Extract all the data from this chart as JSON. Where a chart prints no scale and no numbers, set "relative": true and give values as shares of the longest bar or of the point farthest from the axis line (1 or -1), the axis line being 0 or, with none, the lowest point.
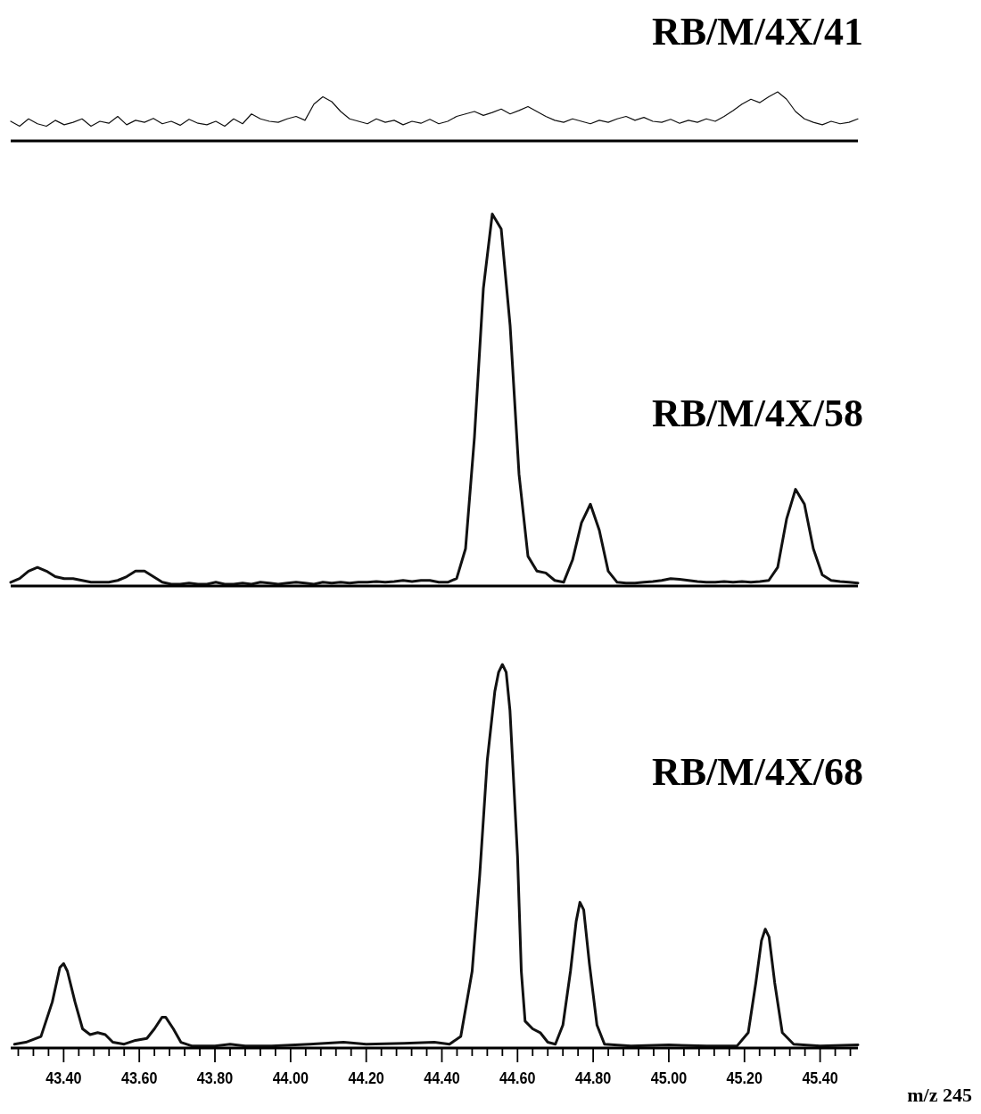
{
  "chart_data": [
    {
      "type": "line",
      "title": "RB/M/4X/41",
      "relative": true,
      "categories": [
        null,
        null,
        null,
        null,
        null,
        null,
        null,
        null,
        null,
        null,
        null,
        null,
        null,
        null,
        null,
        null,
        null,
        null,
        null,
        null,
        null,
        null,
        null,
        null,
        null,
        null,
        null,
        null,
        null,
        null,
        null,
        null,
        null,
        null,
        null,
        null,
        null,
        null,
        null,
        null,
        null,
        null,
        null,
        null,
        null,
        null,
        null,
        null,
        null,
        null,
        null,
        null,
        null,
        null,
        null,
        null,
        null,
        null,
        null,
        null,
        null,
        null,
        null,
        null,
        null,
        null,
        null,
        null,
        null,
        null,
        null,
        null,
        null,
        null,
        null,
        null,
        null,
        null,
        null,
        null,
        null,
        null,
        null,
        null,
        null,
        null,
        null,
        null,
        null,
        null,
        null,
        null,
        null,
        null,
        null,
        null
      ],
      "series": [
        {
          "color": "#111111",
          "values": [
            0.4,
            0.3,
            0.45,
            0.35,
            0.3,
            0.42,
            0.33,
            0.38,
            0.45,
            0.3,
            0.4,
            0.36,
            0.5,
            0.33,
            0.42,
            0.38,
            0.46,
            0.35,
            0.4,
            0.32,
            0.44,
            0.36,
            0.33,
            0.4,
            0.3,
            0.45,
            0.35,
            0.55,
            0.45,
            0.4,
            0.38,
            0.45,
            0.5,
            0.42,
            0.75,
            0.9,
            0.8,
            0.6,
            0.45,
            0.4,
            0.35,
            0.45,
            0.38,
            0.42,
            0.33,
            0.4,
            0.36,
            0.44,
            0.35,
            0.4,
            0.5,
            0.55,
            0.6,
            0.52,
            0.58,
            0.65,
            0.55,
            0.62,
            0.7,
            0.6,
            0.5,
            0.42,
            0.38,
            0.45,
            0.4,
            0.35,
            0.42,
            0.38,
            0.45,
            0.5,
            0.42,
            0.48,
            0.4,
            0.38,
            0.44,
            0.36,
            0.42,
            0.38,
            0.45,
            0.4,
            0.5,
            0.62,
            0.75,
            0.85,
            0.78,
            0.9,
            1.0,
            0.85,
            0.6,
            0.45,
            0.38,
            0.33,
            0.4,
            0.35,
            0.38,
            0.45
          ]
        }
      ]
    },
    {
      "type": "line",
      "title": "RB/M/4X/58",
      "relative": true,
      "categories": [
        null,
        null,
        null,
        null,
        null,
        null,
        null,
        null,
        null,
        null,
        null,
        null,
        null,
        null,
        null,
        null,
        null,
        null,
        null,
        null,
        null,
        null,
        null,
        null,
        null,
        null,
        null,
        null,
        null,
        null,
        null,
        null,
        null,
        null,
        null,
        null,
        null,
        null,
        null,
        null,
        null,
        null,
        null,
        null,
        null,
        null,
        null,
        null,
        null,
        null,
        null,
        null,
        null,
        null,
        null,
        null,
        null,
        null,
        null,
        null,
        null,
        null,
        null,
        null,
        null,
        null,
        null,
        null,
        null,
        null,
        null,
        null,
        null,
        null,
        null,
        null,
        null,
        null,
        null,
        null,
        null,
        null,
        null,
        null,
        null,
        null,
        null,
        null,
        null,
        null,
        null,
        null,
        null,
        null,
        null,
        null
      ],
      "series": [
        {
          "color": "#111111",
          "values": [
            0.01,
            0.02,
            0.04,
            0.05,
            0.04,
            0.025,
            0.02,
            0.02,
            0.015,
            0.01,
            0.01,
            0.01,
            0.015,
            0.025,
            0.04,
            0.04,
            0.025,
            0.01,
            0.005,
            0.005,
            0.008,
            0.005,
            0.005,
            0.01,
            0.005,
            0.005,
            0.008,
            0.005,
            0.01,
            0.008,
            0.005,
            0.008,
            0.01,
            0.008,
            0.005,
            0.01,
            0.008,
            0.01,
            0.008,
            0.01,
            0.01,
            0.012,
            0.01,
            0.012,
            0.015,
            0.012,
            0.015,
            0.015,
            0.01,
            0.01,
            0.02,
            0.1,
            0.4,
            0.8,
            1.0,
            0.96,
            0.7,
            0.3,
            0.08,
            0.04,
            0.035,
            0.015,
            0.01,
            0.07,
            0.17,
            0.22,
            0.15,
            0.04,
            0.01,
            0.008,
            0.008,
            0.01,
            0.012,
            0.015,
            0.02,
            0.018,
            0.015,
            0.012,
            0.01,
            0.01,
            0.012,
            0.01,
            0.012,
            0.01,
            0.012,
            0.015,
            0.05,
            0.18,
            0.26,
            0.22,
            0.1,
            0.03,
            0.015,
            0.012,
            0.01,
            0.008
          ]
        }
      ]
    },
    {
      "type": "line",
      "title": "RB/M/4X/68",
      "relative": true,
      "tick_labels": "x",
      "xlabel": "m/z 245",
      "xlim": [
        43.26,
        45.5
      ],
      "xticks": [
        {
          "value": 43.28,
          "label": null
        },
        {
          "value": 43.32,
          "label": null
        },
        {
          "value": 43.36,
          "label": null
        },
        {
          "value": 43.4,
          "label": "43.40"
        },
        {
          "value": 43.44,
          "label": null
        },
        {
          "value": 43.48,
          "label": null
        },
        {
          "value": 43.52,
          "label": null
        },
        {
          "value": 43.56,
          "label": null
        },
        {
          "value": 43.6,
          "label": "43.60"
        },
        {
          "value": 43.64,
          "label": null
        },
        {
          "value": 43.68,
          "label": null
        },
        {
          "value": 43.72,
          "label": null
        },
        {
          "value": 43.76,
          "label": null
        },
        {
          "value": 43.8,
          "label": "43.80"
        },
        {
          "value": 43.84,
          "label": null
        },
        {
          "value": 43.88,
          "label": null
        },
        {
          "value": 43.92,
          "label": null
        },
        {
          "value": 43.96,
          "label": null
        },
        {
          "value": 44.0,
          "label": "44.00"
        },
        {
          "value": 44.04,
          "label": null
        },
        {
          "value": 44.08,
          "label": null
        },
        {
          "value": 44.12,
          "label": null
        },
        {
          "value": 44.16,
          "label": null
        },
        {
          "value": 44.2,
          "label": "44.20"
        },
        {
          "value": 44.24,
          "label": null
        },
        {
          "value": 44.28,
          "label": null
        },
        {
          "value": 44.32,
          "label": null
        },
        {
          "value": 44.36,
          "label": null
        },
        {
          "value": 44.4,
          "label": "44.40"
        },
        {
          "value": 44.44,
          "label": null
        },
        {
          "value": 44.48,
          "label": null
        },
        {
          "value": 44.52,
          "label": null
        },
        {
          "value": 44.56,
          "label": null
        },
        {
          "value": 44.6,
          "label": "44.60"
        },
        {
          "value": 44.64,
          "label": null
        },
        {
          "value": 44.68,
          "label": null
        },
        {
          "value": 44.72,
          "label": null
        },
        {
          "value": 44.76,
          "label": null
        },
        {
          "value": 44.8,
          "label": "44.80"
        },
        {
          "value": 44.84,
          "label": null
        },
        {
          "value": 44.88,
          "label": null
        },
        {
          "value": 44.92,
          "label": null
        },
        {
          "value": 44.96,
          "label": null
        },
        {
          "value": 45.0,
          "label": "45.00"
        },
        {
          "value": 45.04,
          "label": null
        },
        {
          "value": 45.08,
          "label": null
        },
        {
          "value": 45.12,
          "label": null
        },
        {
          "value": 45.16,
          "label": null
        },
        {
          "value": 45.2,
          "label": "45.20"
        },
        {
          "value": 45.24,
          "label": null
        },
        {
          "value": 45.28,
          "label": null
        },
        {
          "value": 45.32,
          "label": null
        },
        {
          "value": 45.36,
          "label": null
        },
        {
          "value": 45.4,
          "label": "45.40"
        },
        {
          "value": 45.44,
          "label": null
        },
        {
          "value": 45.48,
          "label": null
        }
      ],
      "x": [
        43.27,
        43.3,
        43.34,
        43.37,
        43.39,
        43.4,
        43.41,
        43.43,
        43.45,
        43.47,
        43.49,
        43.51,
        43.53,
        43.56,
        43.59,
        43.62,
        43.64,
        43.66,
        43.67,
        43.69,
        43.71,
        43.74,
        43.8,
        43.84,
        43.88,
        43.95,
        44.05,
        44.14,
        44.2,
        44.3,
        44.38,
        44.42,
        44.45,
        44.48,
        44.5,
        44.52,
        44.54,
        44.55,
        44.56,
        44.57,
        44.58,
        44.6,
        44.61,
        44.62,
        44.64,
        44.66,
        44.68,
        44.7,
        44.72,
        44.74,
        44.755,
        44.765,
        44.775,
        44.79,
        44.81,
        44.83,
        44.9,
        45.0,
        45.1,
        45.18,
        45.21,
        45.23,
        45.245,
        45.255,
        45.265,
        45.28,
        45.3,
        45.33,
        45.4,
        45.5
      ],
      "series": [
        {
          "color": "#111111",
          "values": [
            0.01,
            0.015,
            0.03,
            0.12,
            0.21,
            0.22,
            0.2,
            0.12,
            0.05,
            0.035,
            0.04,
            0.035,
            0.015,
            0.01,
            0.02,
            0.025,
            0.05,
            0.08,
            0.08,
            0.05,
            0.015,
            0.005,
            0.005,
            0.01,
            0.005,
            0.005,
            0.01,
            0.015,
            0.01,
            0.012,
            0.015,
            0.01,
            0.03,
            0.2,
            0.45,
            0.75,
            0.93,
            0.98,
            1.0,
            0.98,
            0.88,
            0.5,
            0.2,
            0.07,
            0.05,
            0.04,
            0.015,
            0.01,
            0.06,
            0.2,
            0.33,
            0.38,
            0.36,
            0.22,
            0.06,
            0.01,
            0.005,
            0.008,
            0.005,
            0.005,
            0.04,
            0.17,
            0.28,
            0.31,
            0.29,
            0.17,
            0.04,
            0.01,
            0.005,
            0.008
          ]
        }
      ]
    }
  ]
}
